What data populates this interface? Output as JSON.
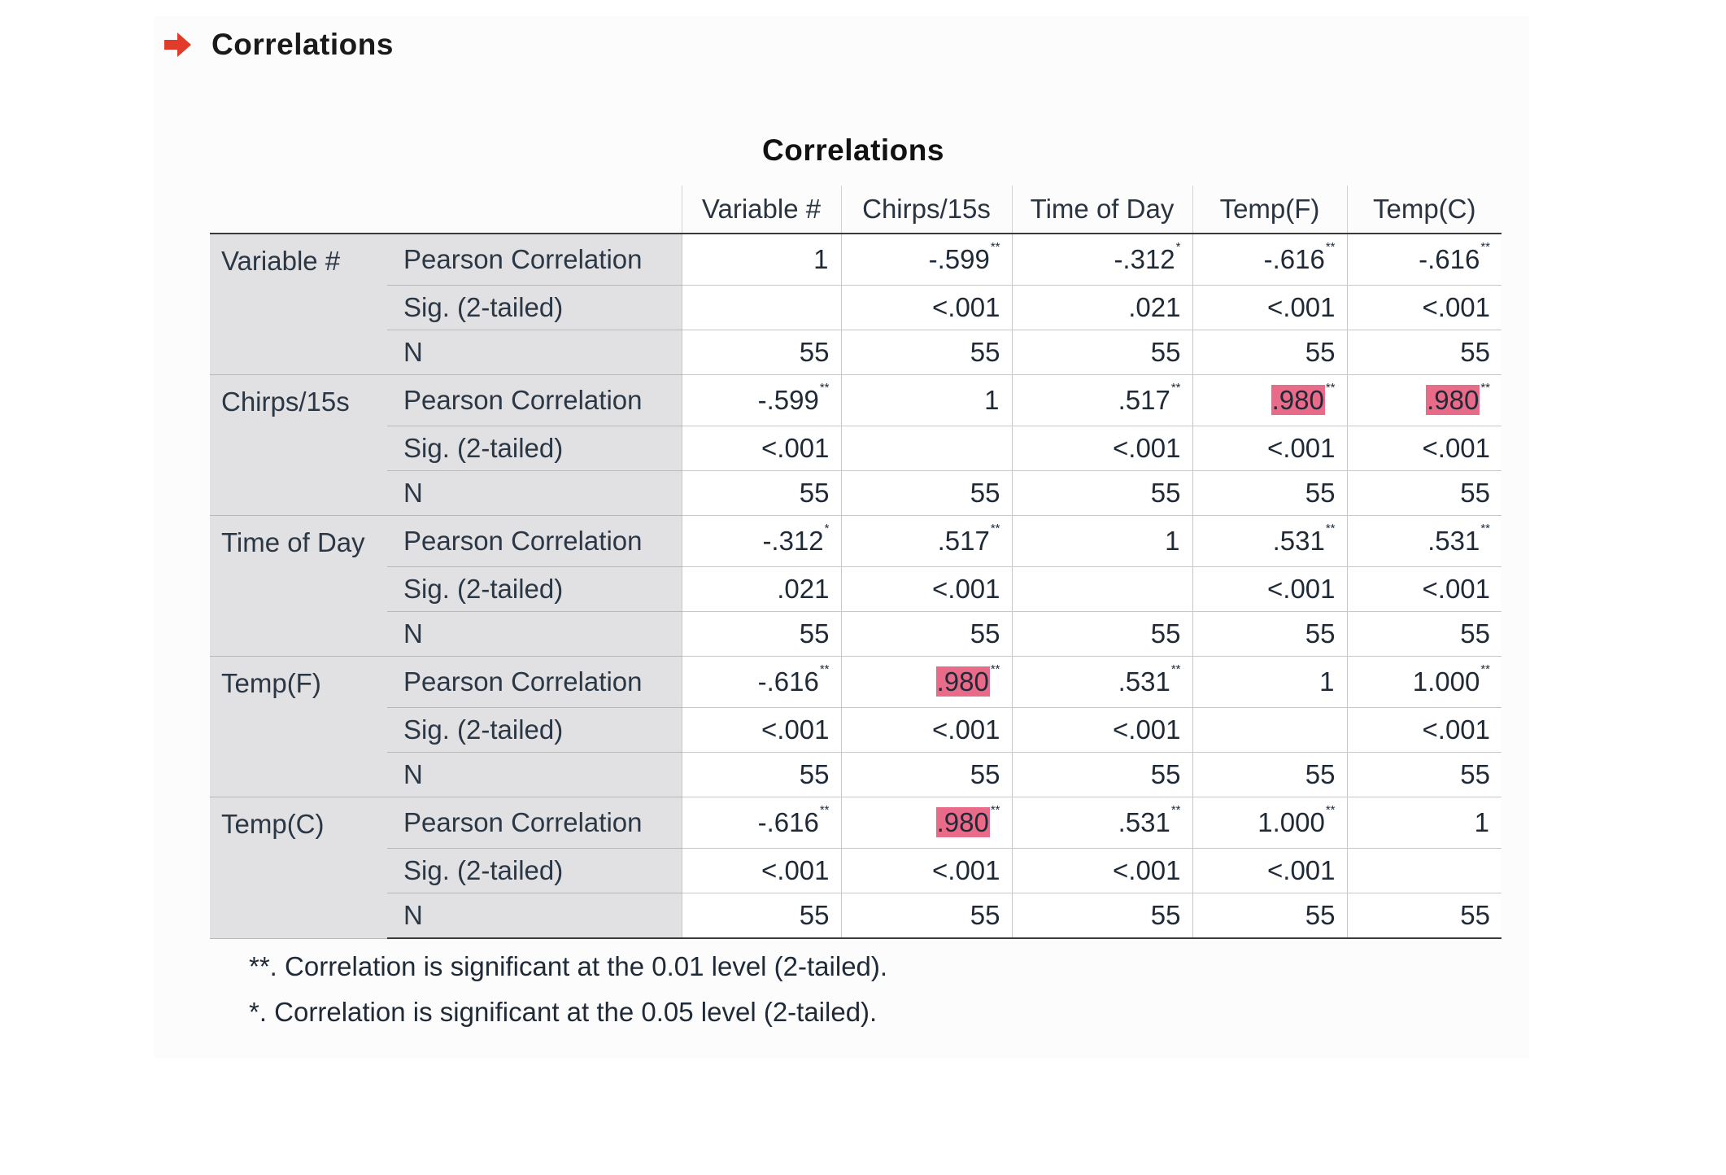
{
  "heading": {
    "title": "Correlations"
  },
  "table": {
    "title": "Correlations",
    "columns": [
      "Variable #",
      "Chirps/15s",
      "Time of Day",
      "Temp(F)",
      "Temp(C)"
    ],
    "stat_labels": [
      "Pearson Correlation",
      "Sig. (2-tailed)",
      "N"
    ],
    "rows": [
      {
        "variable": "Variable #",
        "pearson": [
          {
            "v": "1",
            "s": "",
            "hl": false
          },
          {
            "v": "-.599",
            "s": "**",
            "hl": false
          },
          {
            "v": "-.312",
            "s": "*",
            "hl": false
          },
          {
            "v": "-.616",
            "s": "**",
            "hl": false
          },
          {
            "v": "-.616",
            "s": "**",
            "hl": false
          }
        ],
        "sig": [
          "",
          "<.001",
          ".021",
          "<.001",
          "<.001"
        ],
        "n": [
          "55",
          "55",
          "55",
          "55",
          "55"
        ]
      },
      {
        "variable": "Chirps/15s",
        "pearson": [
          {
            "v": "-.599",
            "s": "**",
            "hl": false
          },
          {
            "v": "1",
            "s": "",
            "hl": false
          },
          {
            "v": ".517",
            "s": "**",
            "hl": false
          },
          {
            "v": ".980",
            "s": "**",
            "hl": true
          },
          {
            "v": ".980",
            "s": "**",
            "hl": true
          }
        ],
        "sig": [
          "<.001",
          "",
          "<.001",
          "<.001",
          "<.001"
        ],
        "n": [
          "55",
          "55",
          "55",
          "55",
          "55"
        ]
      },
      {
        "variable": "Time of Day",
        "pearson": [
          {
            "v": "-.312",
            "s": "*",
            "hl": false
          },
          {
            "v": ".517",
            "s": "**",
            "hl": false
          },
          {
            "v": "1",
            "s": "",
            "hl": false
          },
          {
            "v": ".531",
            "s": "**",
            "hl": false
          },
          {
            "v": ".531",
            "s": "**",
            "hl": false
          }
        ],
        "sig": [
          ".021",
          "<.001",
          "",
          "<.001",
          "<.001"
        ],
        "n": [
          "55",
          "55",
          "55",
          "55",
          "55"
        ]
      },
      {
        "variable": "Temp(F)",
        "pearson": [
          {
            "v": "-.616",
            "s": "**",
            "hl": false
          },
          {
            "v": ".980",
            "s": "**",
            "hl": true
          },
          {
            "v": ".531",
            "s": "**",
            "hl": false
          },
          {
            "v": "1",
            "s": "",
            "hl": false
          },
          {
            "v": "1.000",
            "s": "**",
            "hl": false
          }
        ],
        "sig": [
          "<.001",
          "<.001",
          "<.001",
          "",
          "<.001"
        ],
        "n": [
          "55",
          "55",
          "55",
          "55",
          "55"
        ]
      },
      {
        "variable": "Temp(C)",
        "pearson": [
          {
            "v": "-.616",
            "s": "**",
            "hl": false
          },
          {
            "v": ".980",
            "s": "**",
            "hl": true
          },
          {
            "v": ".531",
            "s": "**",
            "hl": false
          },
          {
            "v": "1.000",
            "s": "**",
            "hl": false
          },
          {
            "v": "1",
            "s": "",
            "hl": false
          }
        ],
        "sig": [
          "<.001",
          "<.001",
          "<.001",
          "<.001",
          ""
        ],
        "n": [
          "55",
          "55",
          "55",
          "55",
          "55"
        ]
      }
    ],
    "footnotes": [
      "**. Correlation is significant at the 0.01 level (2-tailed).",
      "*. Correlation is significant at the 0.05 level (2-tailed)."
    ]
  },
  "colors": {
    "arrow": "#e03b2b",
    "highlight": "#e96b8a",
    "label_background": "#e1e1e3"
  },
  "icons": {
    "heading_arrow": "right-arrow-icon"
  }
}
